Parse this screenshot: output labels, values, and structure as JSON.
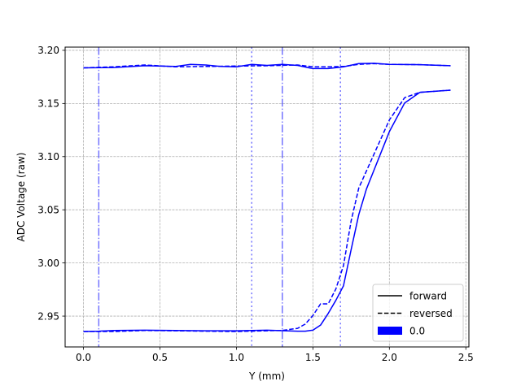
{
  "chart_data": {
    "type": "line",
    "title": "",
    "xlabel": "Y (mm)",
    "ylabel": "ADC Voltage (raw)",
    "xlim": [
      -0.12,
      2.52
    ],
    "ylim": [
      2.921,
      3.203
    ],
    "x_ticks": [
      0.0,
      0.5,
      1.0,
      1.5,
      2.0,
      2.5
    ],
    "x_tick_labels": [
      "0.0",
      "0.5",
      "1.0",
      "1.5",
      "2.0",
      "2.5"
    ],
    "y_ticks": [
      2.95,
      3.0,
      3.05,
      3.1,
      3.15,
      3.2
    ],
    "y_tick_labels": [
      "2.95",
      "3.00",
      "3.05",
      "3.10",
      "3.15",
      "3.20"
    ],
    "grid": true,
    "legend_position": "lower-right",
    "legend": [
      {
        "label": "forward",
        "style": "solid-line"
      },
      {
        "label": "reversed",
        "style": "dashed-line"
      },
      {
        "label": "0.0",
        "style": "filled-patch"
      }
    ],
    "series_color": "#0000ff",
    "vertical_markers": [
      {
        "x": 0.1,
        "style": "dashdot"
      },
      {
        "x": 1.1,
        "style": "dotted"
      },
      {
        "x": 1.3,
        "style": "dashdot"
      },
      {
        "x": 1.68,
        "style": "dotted"
      }
    ],
    "series": [
      {
        "legend": "forward",
        "dash": "solid",
        "x": [
          0.0,
          0.2,
          0.4,
          0.6,
          0.7,
          0.8,
          0.9,
          1.0,
          1.1,
          1.2,
          1.3,
          1.4,
          1.5,
          1.6,
          1.7,
          1.8,
          1.9,
          2.0,
          2.2,
          2.4
        ],
        "y": [
          3.1835,
          3.1838,
          3.1855,
          3.1848,
          3.1868,
          3.1862,
          3.1848,
          3.1845,
          3.1868,
          3.1858,
          3.1868,
          3.1858,
          3.1828,
          3.1828,
          3.1845,
          3.1875,
          3.1878,
          3.1868,
          3.1865,
          3.1855
        ]
      },
      {
        "legend": "reversed",
        "dash": "dashed",
        "x": [
          0.0,
          0.2,
          0.4,
          0.6,
          0.8,
          1.0,
          1.2,
          1.4,
          1.5,
          1.6,
          1.7,
          1.8,
          1.9,
          2.0,
          2.2,
          2.4
        ],
        "y": [
          3.1835,
          3.1845,
          3.1862,
          3.1845,
          3.1848,
          3.1852,
          3.1855,
          3.1862,
          3.1845,
          3.1845,
          3.1848,
          3.1868,
          3.1875,
          3.1868,
          3.1865,
          3.1855
        ]
      },
      {
        "legend": "forward",
        "dash": "solid",
        "x": [
          0.0,
          0.1,
          0.2,
          0.4,
          0.6,
          0.8,
          1.0,
          1.2,
          1.4,
          1.45,
          1.5,
          1.55,
          1.6,
          1.65,
          1.7,
          1.75,
          1.8,
          1.85,
          1.9,
          1.95,
          2.0,
          2.1,
          2.2,
          2.4
        ],
        "y": [
          2.9355,
          2.9358,
          2.9365,
          2.9368,
          2.9365,
          2.9362,
          2.9362,
          2.9368,
          2.9358,
          2.9358,
          2.9368,
          2.9415,
          2.9525,
          2.9648,
          2.9785,
          3.0125,
          3.0455,
          3.0695,
          3.0875,
          3.1055,
          3.1235,
          3.1505,
          3.1605,
          3.1625
        ]
      },
      {
        "legend": "reversed",
        "dash": "dashed",
        "x": [
          0.0,
          0.2,
          0.4,
          0.6,
          0.8,
          1.0,
          1.2,
          1.3,
          1.4,
          1.45,
          1.5,
          1.55,
          1.6,
          1.65,
          1.7,
          1.75,
          1.8,
          1.9,
          2.0,
          2.1,
          2.2,
          2.4
        ],
        "y": [
          2.9355,
          2.9355,
          2.9365,
          2.9362,
          2.9358,
          2.9355,
          2.9362,
          2.9365,
          2.9385,
          2.9425,
          2.9505,
          2.9615,
          2.9615,
          2.9755,
          2.9975,
          3.0395,
          3.0705,
          3.1025,
          3.1345,
          3.1555,
          3.1605,
          3.1625
        ]
      }
    ]
  }
}
